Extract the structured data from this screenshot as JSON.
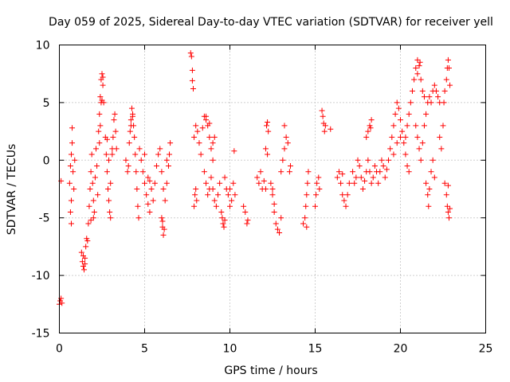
{
  "chart_data": {
    "type": "scatter",
    "title": "Day 059 of 2025, Sidereal Day-to-day VTEC variation (SDTVAR) for receiver yell",
    "xlabel": "GPS time / hours",
    "ylabel": "SDTVAR / TECUs",
    "xlim": [
      0,
      25
    ],
    "ylim": [
      -15,
      10
    ],
    "xticks": [
      0,
      5,
      10,
      15,
      20,
      25
    ],
    "yticks": [
      -15,
      -10,
      -5,
      0,
      5,
      10
    ],
    "xtick_labels": [
      "0",
      "5",
      "10",
      "15",
      "20",
      "25"
    ],
    "ytick_labels": [
      "-15",
      "-10",
      "-5",
      "0",
      "5",
      "10"
    ],
    "grid": true,
    "marker": "plus",
    "color": "#ff0000",
    "series": [
      {
        "name": "SDTVAR",
        "points": [
          [
            0.0,
            -12.5
          ],
          [
            0.05,
            -12.2
          ],
          [
            0.1,
            -12.0
          ],
          [
            0.15,
            -12.4
          ],
          [
            0.1,
            -1.8
          ],
          [
            0.6,
            -2.0
          ],
          [
            0.65,
            -0.5
          ],
          [
            0.7,
            0.5
          ],
          [
            0.75,
            1.5
          ],
          [
            0.8,
            -1.0
          ],
          [
            0.7,
            -3.5
          ],
          [
            0.65,
            -4.5
          ],
          [
            0.7,
            -5.5
          ],
          [
            0.75,
            2.8
          ],
          [
            0.85,
            -2.5
          ],
          [
            0.9,
            0.0
          ],
          [
            1.3,
            -8.0
          ],
          [
            1.35,
            -8.8
          ],
          [
            1.4,
            -9.2
          ],
          [
            1.45,
            -9.5
          ],
          [
            1.5,
            -8.5
          ],
          [
            1.55,
            -7.5
          ],
          [
            1.6,
            -6.8
          ],
          [
            1.65,
            -7.0
          ],
          [
            1.5,
            -9.0
          ],
          [
            1.4,
            -8.3
          ],
          [
            1.7,
            -5.5
          ],
          [
            1.75,
            -4.0
          ],
          [
            1.8,
            -2.5
          ],
          [
            1.85,
            -1.0
          ],
          [
            1.9,
            0.5
          ],
          [
            1.95,
            -2.0
          ],
          [
            2.0,
            -3.5
          ],
          [
            2.05,
            -4.5
          ],
          [
            2.1,
            -1.5
          ],
          [
            2.15,
            1.0
          ],
          [
            2.2,
            -0.5
          ],
          [
            2.25,
            -3.0
          ],
          [
            1.85,
            -5.2
          ],
          [
            2.0,
            -5.0
          ],
          [
            2.3,
            2.5
          ],
          [
            2.35,
            4.0
          ],
          [
            2.4,
            5.5
          ],
          [
            2.45,
            7.0
          ],
          [
            2.5,
            7.5
          ],
          [
            2.55,
            6.5
          ],
          [
            2.6,
            5.0
          ],
          [
            2.4,
            3.0
          ],
          [
            2.35,
            1.5
          ],
          [
            2.5,
            5.2
          ],
          [
            2.55,
            7.2
          ],
          [
            2.45,
            5.0
          ],
          [
            2.7,
            2.0
          ],
          [
            2.75,
            0.5
          ],
          [
            2.8,
            -1.0
          ],
          [
            2.85,
            -2.5
          ],
          [
            2.9,
            -3.5
          ],
          [
            2.95,
            -4.5
          ],
          [
            3.0,
            -5.0
          ],
          [
            2.8,
            1.8
          ],
          [
            2.9,
            0.0
          ],
          [
            3.0,
            -2.0
          ],
          [
            3.1,
            1.0
          ],
          [
            3.15,
            2.0
          ],
          [
            3.2,
            3.5
          ],
          [
            3.25,
            4.0
          ],
          [
            3.3,
            2.5
          ],
          [
            3.35,
            1.0
          ],
          [
            3.1,
            0.5
          ],
          [
            3.9,
            0.0
          ],
          [
            4.0,
            -1.0
          ],
          [
            4.05,
            -0.5
          ],
          [
            4.1,
            1.5
          ],
          [
            4.15,
            2.5
          ],
          [
            4.2,
            3.5
          ],
          [
            4.25,
            4.5
          ],
          [
            4.3,
            4.0
          ],
          [
            4.35,
            3.0
          ],
          [
            4.4,
            2.0
          ],
          [
            4.45,
            0.5
          ],
          [
            4.5,
            -1.0
          ],
          [
            4.55,
            -2.5
          ],
          [
            4.6,
            -4.0
          ],
          [
            4.65,
            -5.0
          ],
          [
            4.2,
            3.0
          ],
          [
            4.3,
            3.8
          ],
          [
            4.7,
            1.0
          ],
          [
            4.8,
            0.0
          ],
          [
            4.9,
            -1.0
          ],
          [
            5.0,
            -2.0
          ],
          [
            5.1,
            -3.0
          ],
          [
            5.2,
            -3.8
          ],
          [
            5.3,
            -4.5
          ],
          [
            5.0,
            0.5
          ],
          [
            5.2,
            -1.5
          ],
          [
            5.4,
            -2.5
          ],
          [
            5.5,
            -3.5
          ],
          [
            5.3,
            -1.8
          ],
          [
            5.6,
            -2.0
          ],
          [
            5.7,
            -0.5
          ],
          [
            5.8,
            0.5
          ],
          [
            5.9,
            1.0
          ],
          [
            6.0,
            -1.0
          ],
          [
            6.1,
            -2.5
          ],
          [
            6.2,
            -3.5
          ],
          [
            6.3,
            -2.0
          ],
          [
            6.4,
            -0.5
          ],
          [
            6.45,
            0.5
          ],
          [
            6.5,
            1.5
          ],
          [
            6.3,
            0.0
          ],
          [
            6.0,
            -5.0
          ],
          [
            6.05,
            -5.8
          ],
          [
            6.1,
            -6.5
          ],
          [
            6.15,
            -6.0
          ],
          [
            6.05,
            -5.3
          ],
          [
            7.7,
            9.3
          ],
          [
            7.75,
            9.0
          ],
          [
            7.8,
            7.8
          ],
          [
            7.85,
            6.2
          ],
          [
            7.8,
            6.9
          ],
          [
            7.9,
            -4.0
          ],
          [
            7.95,
            -3.0
          ],
          [
            8.0,
            -2.5
          ],
          [
            8.05,
            -3.5
          ],
          [
            7.9,
            2.0
          ],
          [
            8.0,
            3.0
          ],
          [
            8.1,
            2.5
          ],
          [
            8.2,
            1.5
          ],
          [
            8.3,
            0.5
          ],
          [
            8.4,
            2.8
          ],
          [
            8.5,
            3.8
          ],
          [
            8.6,
            3.5
          ],
          [
            8.7,
            3.0
          ],
          [
            8.8,
            2.0
          ],
          [
            8.9,
            1.0
          ],
          [
            9.0,
            0.0
          ],
          [
            8.6,
            3.8
          ],
          [
            8.8,
            3.2
          ],
          [
            9.1,
            2.0
          ],
          [
            9.0,
            1.5
          ],
          [
            8.5,
            -1.0
          ],
          [
            8.6,
            -2.0
          ],
          [
            8.7,
            -3.0
          ],
          [
            8.8,
            -2.5
          ],
          [
            8.9,
            -1.5
          ],
          [
            9.0,
            -2.5
          ],
          [
            9.1,
            -3.5
          ],
          [
            9.2,
            -4.0
          ],
          [
            9.3,
            -3.0
          ],
          [
            9.4,
            -2.0
          ],
          [
            9.5,
            -4.5
          ],
          [
            9.55,
            -5.0
          ],
          [
            9.6,
            -5.5
          ],
          [
            9.65,
            -5.8
          ],
          [
            9.7,
            -5.2
          ],
          [
            9.7,
            -1.5
          ],
          [
            9.8,
            -2.5
          ],
          [
            9.9,
            -3.0
          ],
          [
            10.0,
            -2.5
          ],
          [
            10.1,
            -3.5
          ],
          [
            10.2,
            -2.0
          ],
          [
            10.0,
            -4.0
          ],
          [
            10.25,
            0.8
          ],
          [
            10.3,
            -3.0
          ],
          [
            10.8,
            -4.0
          ],
          [
            10.9,
            -4.5
          ],
          [
            11.0,
            -5.5
          ],
          [
            11.05,
            -5.2
          ],
          [
            11.6,
            -1.5
          ],
          [
            11.7,
            -2.0
          ],
          [
            11.8,
            -1.0
          ],
          [
            11.9,
            -2.5
          ],
          [
            12.0,
            -1.8
          ],
          [
            12.1,
            -2.5
          ],
          [
            12.15,
            3.0
          ],
          [
            12.2,
            3.3
          ],
          [
            12.25,
            2.5
          ],
          [
            12.1,
            1.0
          ],
          [
            12.2,
            0.5
          ],
          [
            12.4,
            -2.0
          ],
          [
            12.5,
            -3.0
          ],
          [
            12.6,
            -4.5
          ],
          [
            12.7,
            -5.5
          ],
          [
            12.8,
            -6.0
          ],
          [
            12.9,
            -6.3
          ],
          [
            13.0,
            -5.0
          ],
          [
            12.5,
            -2.5
          ],
          [
            12.6,
            -3.8
          ],
          [
            13.0,
            -1.0
          ],
          [
            13.1,
            0.0
          ],
          [
            13.2,
            1.0
          ],
          [
            13.3,
            2.0
          ],
          [
            13.4,
            1.5
          ],
          [
            13.5,
            -1.0
          ],
          [
            13.55,
            -0.5
          ],
          [
            13.2,
            3.0
          ],
          [
            14.3,
            -5.5
          ],
          [
            14.4,
            -5.0
          ],
          [
            14.45,
            -4.0
          ],
          [
            14.5,
            -3.0
          ],
          [
            14.55,
            -2.0
          ],
          [
            14.6,
            -1.0
          ],
          [
            14.5,
            -5.8
          ],
          [
            15.0,
            -4.0
          ],
          [
            15.05,
            -3.0
          ],
          [
            15.1,
            -2.0
          ],
          [
            15.2,
            -1.5
          ],
          [
            15.25,
            -2.5
          ],
          [
            15.4,
            4.3
          ],
          [
            15.45,
            3.8
          ],
          [
            15.5,
            3.2
          ],
          [
            15.55,
            2.5
          ],
          [
            15.6,
            3.0
          ],
          [
            15.9,
            2.7
          ],
          [
            16.3,
            -1.5
          ],
          [
            16.4,
            -1.0
          ],
          [
            16.5,
            -2.0
          ],
          [
            16.6,
            -3.0
          ],
          [
            16.7,
            -3.5
          ],
          [
            16.8,
            -4.0
          ],
          [
            16.9,
            -3.0
          ],
          [
            17.0,
            -2.0
          ],
          [
            16.6,
            -1.2
          ],
          [
            17.2,
            -1.0
          ],
          [
            17.3,
            -2.0
          ],
          [
            17.4,
            -1.5
          ],
          [
            17.5,
            0.0
          ],
          [
            17.6,
            -0.5
          ],
          [
            17.7,
            -1.5
          ],
          [
            17.8,
            -2.5
          ],
          [
            17.9,
            -1.8
          ],
          [
            18.0,
            -1.0
          ],
          [
            18.1,
            0.0
          ],
          [
            18.2,
            -1.0
          ],
          [
            18.3,
            -2.0
          ],
          [
            18.4,
            -1.5
          ],
          [
            18.5,
            -0.5
          ],
          [
            18.6,
            -1.0
          ],
          [
            18.7,
            -2.0
          ],
          [
            18.8,
            -1.0
          ],
          [
            18.9,
            0.0
          ],
          [
            19.0,
            -0.5
          ],
          [
            19.1,
            -1.5
          ],
          [
            19.2,
            -0.8
          ],
          [
            19.3,
            0.0
          ],
          [
            18.0,
            2.0
          ],
          [
            18.1,
            2.5
          ],
          [
            18.2,
            3.0
          ],
          [
            18.3,
            3.5
          ],
          [
            18.25,
            2.8
          ],
          [
            19.4,
            1.0
          ],
          [
            19.5,
            2.0
          ],
          [
            19.6,
            3.0
          ],
          [
            19.7,
            4.0
          ],
          [
            19.8,
            5.0
          ],
          [
            19.9,
            4.5
          ],
          [
            20.0,
            3.5
          ],
          [
            20.1,
            2.5
          ],
          [
            20.2,
            1.5
          ],
          [
            20.3,
            0.5
          ],
          [
            20.4,
            -0.5
          ],
          [
            20.5,
            -1.0
          ],
          [
            19.6,
            0.5
          ],
          [
            19.8,
            1.5
          ],
          [
            20.0,
            2.0
          ],
          [
            20.3,
            2.0
          ],
          [
            20.4,
            3.0
          ],
          [
            20.5,
            4.0
          ],
          [
            20.6,
            5.0
          ],
          [
            20.7,
            6.0
          ],
          [
            20.8,
            7.0
          ],
          [
            20.9,
            8.0
          ],
          [
            21.0,
            8.7
          ],
          [
            21.1,
            8.2
          ],
          [
            21.2,
            7.0
          ],
          [
            21.3,
            6.0
          ],
          [
            21.4,
            5.5
          ],
          [
            21.0,
            7.5
          ],
          [
            21.15,
            8.5
          ],
          [
            20.9,
            3.0
          ],
          [
            21.0,
            2.0
          ],
          [
            21.1,
            1.0
          ],
          [
            21.2,
            0.0
          ],
          [
            21.3,
            1.5
          ],
          [
            21.4,
            3.0
          ],
          [
            21.5,
            4.0
          ],
          [
            21.6,
            5.0
          ],
          [
            21.7,
            5.5
          ],
          [
            21.8,
            5.0
          ],
          [
            21.9,
            6.0
          ],
          [
            22.0,
            6.5
          ],
          [
            22.1,
            6.0
          ],
          [
            22.2,
            5.5
          ],
          [
            22.3,
            5.0
          ],
          [
            21.5,
            -2.0
          ],
          [
            21.6,
            -3.0
          ],
          [
            21.65,
            -4.0
          ],
          [
            21.7,
            -2.5
          ],
          [
            21.8,
            -1.0
          ],
          [
            21.9,
            0.0
          ],
          [
            22.0,
            -1.5
          ],
          [
            22.3,
            2.0
          ],
          [
            22.4,
            1.0
          ],
          [
            22.5,
            3.0
          ],
          [
            22.55,
            5.0
          ],
          [
            22.6,
            6.0
          ],
          [
            22.7,
            7.0
          ],
          [
            22.75,
            8.0
          ],
          [
            22.8,
            8.7
          ],
          [
            22.85,
            8.0
          ],
          [
            22.9,
            6.5
          ],
          [
            22.6,
            -2.0
          ],
          [
            22.7,
            -3.0
          ],
          [
            22.75,
            -4.0
          ],
          [
            22.8,
            -4.5
          ],
          [
            22.85,
            -5.0
          ],
          [
            22.9,
            -4.2
          ],
          [
            22.8,
            -2.2
          ]
        ]
      }
    ]
  }
}
